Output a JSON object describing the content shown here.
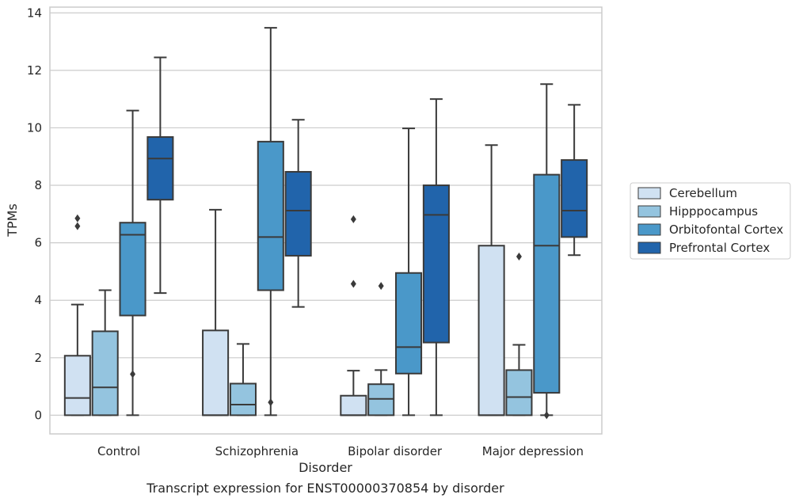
{
  "chart_data": {
    "type": "box",
    "title": "",
    "caption": "Transcript expression for ENST00000370854 by disorder",
    "xlabel": "Disorder",
    "ylabel": "TPMs",
    "ylim": [
      -0.65,
      14.2
    ],
    "yticks": [
      0,
      2,
      4,
      6,
      8,
      10,
      12,
      14
    ],
    "grid": "horizontal",
    "legend_position": "right",
    "categories": [
      "Control",
      "Schizophrenia",
      "Bipolar disorder",
      "Major depression"
    ],
    "series": [
      {
        "name": "Cerebellum",
        "color": "#d0e1f2",
        "boxes": [
          {
            "whislo": 0,
            "q1": 0,
            "med": 0.6,
            "q3": 2.07,
            "whishi": 3.85,
            "fliers": [
              6.58,
              6.85
            ]
          },
          {
            "whislo": 0,
            "q1": 0,
            "med": 0,
            "q3": 2.95,
            "whishi": 7.15,
            "fliers": []
          },
          {
            "whislo": 0,
            "q1": 0,
            "med": 0,
            "q3": 0.68,
            "whishi": 1.55,
            "fliers": [
              4.57,
              6.82
            ]
          },
          {
            "whislo": 0,
            "q1": 0,
            "med": 0,
            "q3": 5.9,
            "whishi": 9.4,
            "fliers": []
          }
        ]
      },
      {
        "name": "Hipppocampus",
        "color": "#94c4df",
        "boxes": [
          {
            "whislo": 0,
            "q1": 0,
            "med": 0.97,
            "q3": 2.92,
            "whishi": 4.35,
            "fliers": []
          },
          {
            "whislo": 0,
            "q1": 0,
            "med": 0.37,
            "q3": 1.1,
            "whishi": 2.48,
            "fliers": []
          },
          {
            "whislo": 0,
            "q1": 0,
            "med": 0.57,
            "q3": 1.08,
            "whishi": 1.57,
            "fliers": [
              4.5
            ]
          },
          {
            "whislo": 0,
            "q1": 0,
            "med": 0.63,
            "q3": 1.57,
            "whishi": 2.45,
            "fliers": [
              5.52
            ]
          }
        ]
      },
      {
        "name": "Orbitofontal Cortex",
        "color": "#4a98c9",
        "boxes": [
          {
            "whislo": 0,
            "q1": 3.47,
            "med": 6.28,
            "q3": 6.7,
            "whishi": 10.6,
            "fliers": [
              1.43
            ]
          },
          {
            "whislo": 0,
            "q1": 4.35,
            "med": 6.2,
            "q3": 9.52,
            "whishi": 13.48,
            "fliers": [
              0.45
            ]
          },
          {
            "whislo": 0,
            "q1": 1.45,
            "med": 2.37,
            "q3": 4.95,
            "whishi": 9.98,
            "fliers": []
          },
          {
            "whislo": 0,
            "q1": 0.78,
            "med": 5.9,
            "q3": 8.37,
            "whishi": 11.52,
            "fliers": [
              0
            ]
          }
        ]
      },
      {
        "name": "Prefrontal Cortex",
        "color": "#2164ab",
        "boxes": [
          {
            "whislo": 4.25,
            "q1": 7.5,
            "med": 8.93,
            "q3": 9.68,
            "whishi": 12.45,
            "fliers": []
          },
          {
            "whislo": 3.77,
            "q1": 5.55,
            "med": 7.12,
            "q3": 8.47,
            "whishi": 10.28,
            "fliers": []
          },
          {
            "whislo": 0,
            "q1": 2.53,
            "med": 6.97,
            "q3": 8.0,
            "whishi": 11.0,
            "fliers": []
          },
          {
            "whislo": 5.57,
            "q1": 6.2,
            "med": 7.12,
            "q3": 8.88,
            "whishi": 10.8,
            "fliers": []
          }
        ]
      }
    ]
  }
}
